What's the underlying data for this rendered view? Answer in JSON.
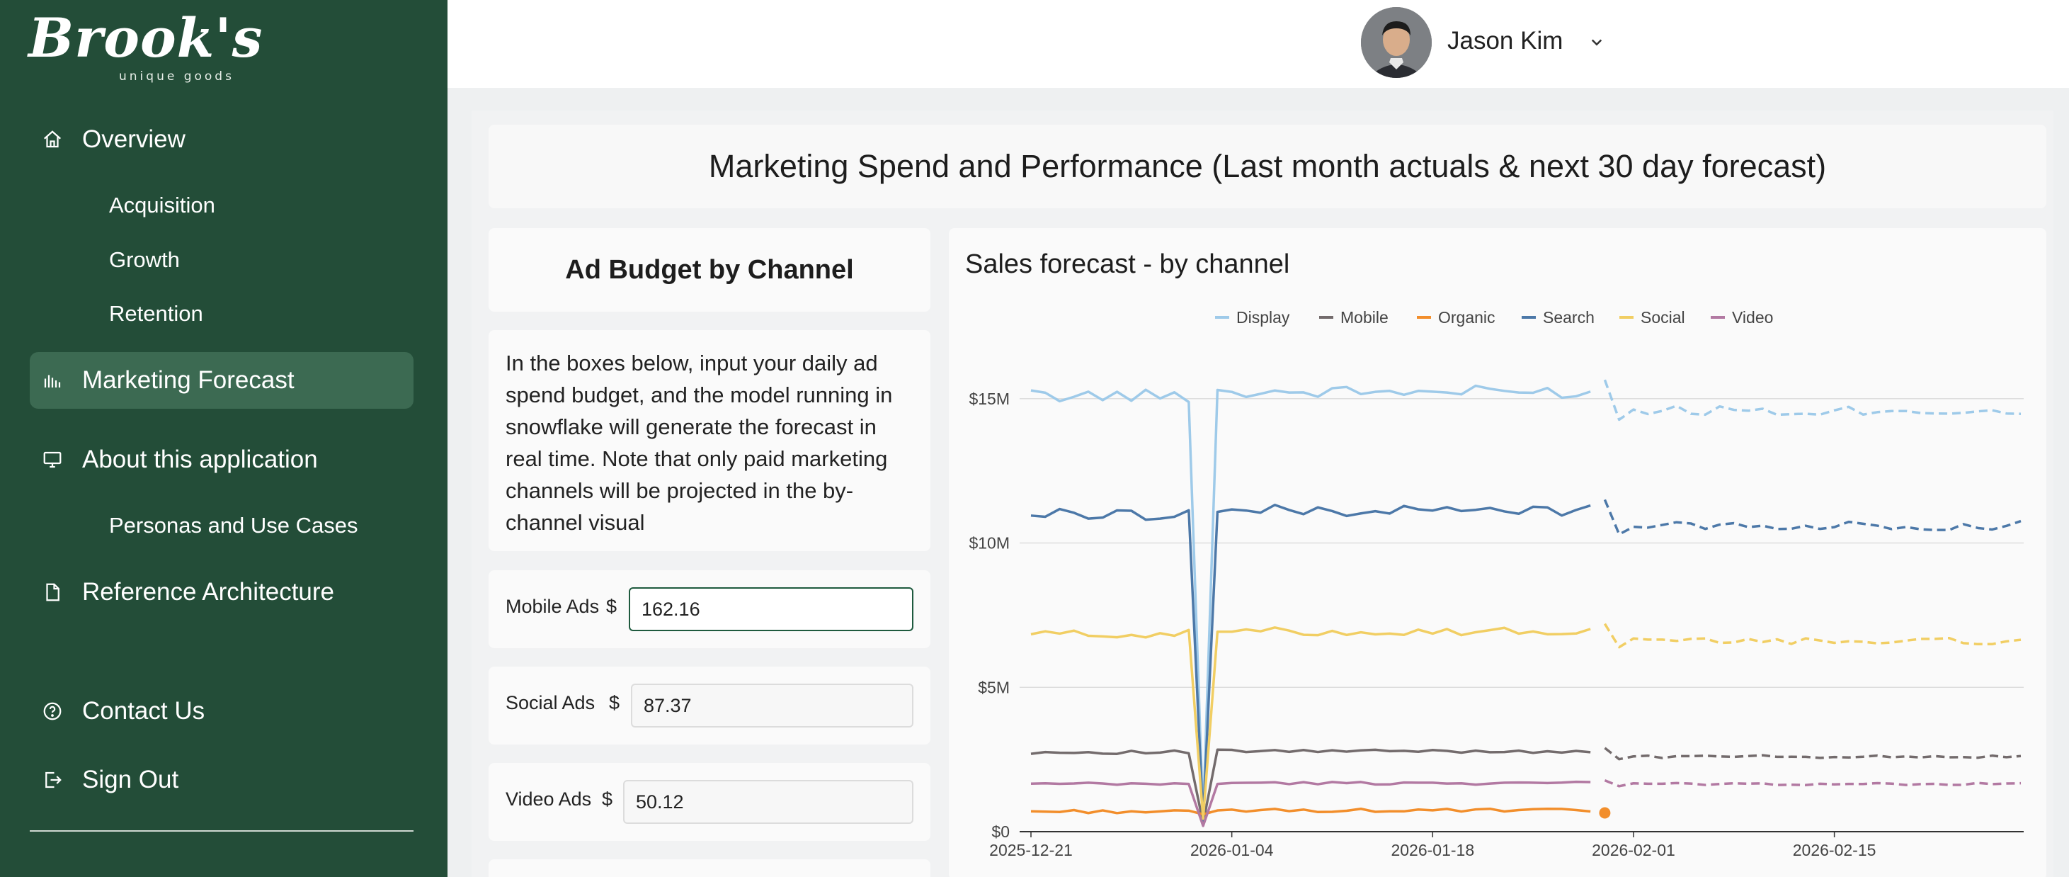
{
  "brand": {
    "name": "Brook's",
    "tagline": "unique goods"
  },
  "nav": {
    "items": [
      {
        "id": "overview",
        "label": "Overview",
        "icon": "home-icon"
      },
      {
        "id": "marketing-forecast",
        "label": "Marketing Forecast",
        "icon": "bar-chart-icon",
        "active": true
      },
      {
        "id": "about",
        "label": "About this application",
        "icon": "monitor-icon"
      },
      {
        "id": "reference",
        "label": "Reference Architecture",
        "icon": "document-icon"
      },
      {
        "id": "contact",
        "label": "Contact Us",
        "icon": "help-circle-icon"
      },
      {
        "id": "signout",
        "label": "Sign Out",
        "icon": "sign-out-icon"
      }
    ],
    "subitems": {
      "overview": [
        "Acquisition",
        "Growth",
        "Retention"
      ],
      "about": [
        "Personas and Use Cases"
      ]
    }
  },
  "header": {
    "user_name": "Jason Kim"
  },
  "page": {
    "title": "Marketing Spend and Performance (Last month actuals & next 30 day forecast)"
  },
  "budget": {
    "title": "Ad Budget by Channel",
    "description": "In the boxes below, input your daily ad spend budget, and the model running in snowflake will generate the forecast in real time. Note that only paid marketing channels will be projected in the by-channel visual",
    "inputs": [
      {
        "label": "Mobile Ads",
        "currency": "$",
        "value": "162.16",
        "focused": true
      },
      {
        "label": "Social Ads",
        "currency": "$",
        "value": "87.37"
      },
      {
        "label": "Video Ads",
        "currency": "$",
        "value": "50.12"
      }
    ]
  },
  "chart_data": {
    "type": "line",
    "title": "Sales forecast - by channel",
    "legend_position": "top-center",
    "grid": true,
    "x_start": "2025-12-21",
    "x_ticks": [
      "2025-12-21",
      "2026-01-04",
      "2026-01-18",
      "2026-02-01",
      "2026-02-15"
    ],
    "y_ticks": [
      "$0",
      "$5M",
      "$10M",
      "$15M"
    ],
    "ylim": [
      0,
      16
    ],
    "y_unit": "M",
    "actual_days": 40,
    "forecast_days": 30,
    "series": [
      {
        "name": "Display",
        "color": "#9ecae9",
        "base": 15.1,
        "fore_base": 14.6,
        "spike": 0.5,
        "amp": 0.22
      },
      {
        "name": "Mobile",
        "color": "#736b6c",
        "base": 2.75,
        "fore_base": 2.6,
        "spike": 0.3,
        "amp": 0.06
      },
      {
        "name": "Organic",
        "color": "#f28e2b",
        "base": 0.7,
        "fore_base": null,
        "spike": 0.6,
        "amp": 0.06
      },
      {
        "name": "Search",
        "color": "#4c78a8",
        "base": 11.0,
        "fore_base": 10.6,
        "spike": 0.4,
        "amp": 0.2
      },
      {
        "name": "Social",
        "color": "#f1ce63",
        "base": 6.85,
        "fore_base": 6.6,
        "spike": 0.45,
        "amp": 0.14
      },
      {
        "name": "Video",
        "color": "#b279a2",
        "base": 1.65,
        "fore_base": 1.65,
        "spike": 0.2,
        "amp": 0.05
      }
    ]
  }
}
